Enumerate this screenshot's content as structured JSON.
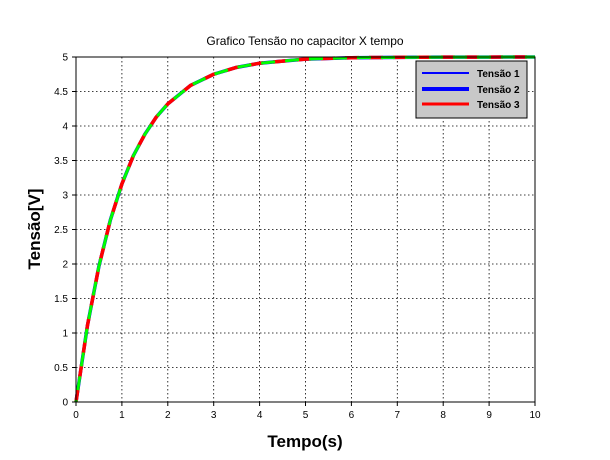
{
  "chart_data": {
    "type": "line",
    "title": "Grafico Tensão no capacitor X tempo",
    "xlabel": "Tempo(s)",
    "ylabel": "Tensão[V]",
    "xlim": [
      0,
      10
    ],
    "ylim": [
      0,
      5
    ],
    "xticks": [
      "0",
      "1",
      "2",
      "3",
      "4",
      "5",
      "6",
      "7",
      "8",
      "9",
      "10"
    ],
    "yticks": [
      "0",
      "0.5",
      "1",
      "1.5",
      "2",
      "2.5",
      "3",
      "3.5",
      "4",
      "4.5",
      "5"
    ],
    "grid": true,
    "legend_position": "top-right",
    "x": [
      0,
      0.25,
      0.5,
      0.75,
      1,
      1.25,
      1.5,
      1.75,
      2,
      2.5,
      3,
      3.5,
      4,
      4.5,
      5,
      6,
      7,
      8,
      9,
      10
    ],
    "series": [
      {
        "name": "Tensão 1",
        "color": "#0000ff",
        "values": [
          0,
          1.11,
          1.97,
          2.64,
          3.16,
          3.57,
          3.88,
          4.13,
          4.32,
          4.59,
          4.75,
          4.85,
          4.91,
          4.94,
          4.97,
          4.99,
          4.995,
          4.998,
          4.999,
          5.0
        ]
      },
      {
        "name": "Tensão 2",
        "color": "#0000ff",
        "values": [
          0,
          1.11,
          1.97,
          2.64,
          3.16,
          3.57,
          3.88,
          4.13,
          4.32,
          4.59,
          4.75,
          4.85,
          4.91,
          4.94,
          4.97,
          4.99,
          4.995,
          4.998,
          4.999,
          5.0
        ]
      },
      {
        "name": "Tensão 3",
        "color": "#ff0000",
        "values": [
          0,
          1.11,
          1.97,
          2.64,
          3.16,
          3.57,
          3.88,
          4.13,
          4.32,
          4.59,
          4.75,
          4.85,
          4.91,
          4.94,
          4.97,
          4.99,
          4.995,
          4.998,
          4.999,
          5.0
        ]
      },
      {
        "color": "#00ff00",
        "values": [
          0,
          1.11,
          1.97,
          2.64,
          3.16,
          3.57,
          3.88,
          4.13,
          4.32,
          4.59,
          4.75,
          4.85,
          4.91,
          4.94,
          4.97,
          4.99,
          4.995,
          4.998,
          4.999,
          5.0
        ]
      }
    ]
  }
}
